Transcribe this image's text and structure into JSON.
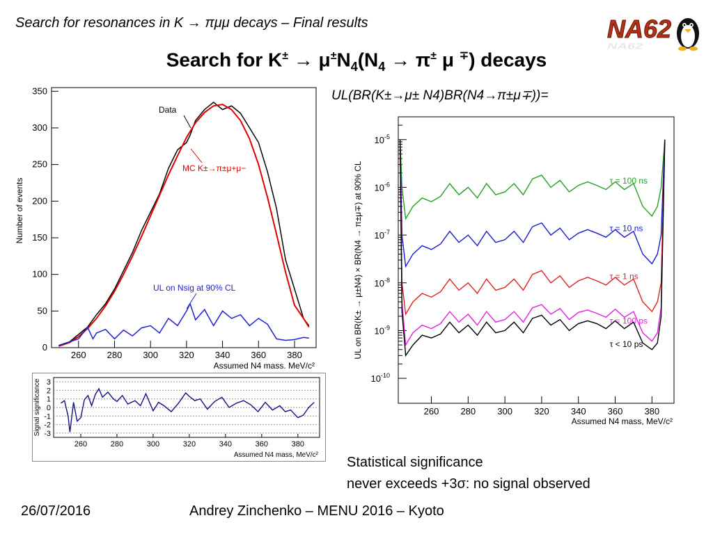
{
  "slide": {
    "subtitle": "Search for resonances in K → πμμ decays – Final results",
    "title": "Search for K± → μ±N4(N4 → π± μ ∓) decays",
    "ul_formula": "UL(BR(K±→μ± N4)BR(N4→π±μ∓))=",
    "logo_text": "NA62",
    "note_lines": [
      "Statistical significance",
      "never exceeds +3σ: no signal observed"
    ],
    "date": "26/07/2016",
    "footer": "Andrey Zinchenko – MENU 2016 – Kyoto"
  },
  "colors": {
    "data": "#000000",
    "mc": "#e00000",
    "ul": "#2020d0",
    "signif": "#101080",
    "tau100ns": "#22a022",
    "tau10ns": "#1a1ad0",
    "tau1ns": "#e02020",
    "tau100ps": "#e020e0",
    "tau10ps": "#000000"
  },
  "chart_data": [
    {
      "type": "line",
      "id": "events",
      "xlabel": "Assumed N4 mass, MeV/c²",
      "ylabel": "Number of events",
      "xlim": [
        245,
        392
      ],
      "ylim": [
        0,
        355
      ],
      "xticks": [
        260,
        280,
        300,
        320,
        340,
        360,
        380
      ],
      "yticks": [
        0,
        50,
        100,
        150,
        200,
        250,
        300,
        350
      ],
      "annotations": [
        "Data",
        "MC K±→π±μ+μ−",
        "UL on Nsig at 90% CL"
      ],
      "series": [
        {
          "name": "Data",
          "x": [
            249,
            255,
            260,
            265,
            270,
            275,
            280,
            285,
            290,
            295,
            300,
            305,
            310,
            315,
            320,
            322,
            325,
            330,
            335,
            340,
            345,
            350,
            355,
            360,
            365,
            370,
            375,
            380,
            385,
            388
          ],
          "y": [
            3,
            8,
            18,
            28,
            45,
            60,
            80,
            105,
            130,
            160,
            185,
            210,
            245,
            270,
            280,
            290,
            310,
            325,
            335,
            325,
            330,
            320,
            300,
            280,
            240,
            190,
            120,
            80,
            40,
            30
          ]
        },
        {
          "name": "MC K±→π±μ+μ−",
          "x": [
            249,
            255,
            260,
            265,
            270,
            275,
            280,
            285,
            290,
            295,
            300,
            305,
            310,
            315,
            320,
            325,
            330,
            335,
            340,
            345,
            350,
            355,
            360,
            365,
            370,
            375,
            380,
            385,
            388
          ],
          "y": [
            2,
            7,
            15,
            26,
            40,
            57,
            77,
            100,
            125,
            152,
            180,
            208,
            236,
            262,
            287,
            307,
            321,
            330,
            332,
            325,
            310,
            285,
            250,
            205,
            155,
            103,
            58,
            40,
            28
          ]
        },
        {
          "name": "UL on Nsig at 90% CL",
          "x": [
            249,
            252,
            255,
            260,
            265,
            268,
            270,
            275,
            280,
            285,
            290,
            295,
            300,
            305,
            310,
            315,
            320,
            322,
            325,
            330,
            335,
            340,
            345,
            350,
            355,
            360,
            365,
            370,
            375,
            380,
            385,
            388
          ],
          "y": [
            3,
            5,
            8,
            12,
            28,
            12,
            20,
            25,
            12,
            24,
            16,
            27,
            30,
            20,
            40,
            30,
            50,
            60,
            38,
            52,
            30,
            50,
            40,
            45,
            30,
            40,
            32,
            12,
            10,
            11,
            14,
            13
          ]
        }
      ]
    },
    {
      "type": "line",
      "id": "significance",
      "xlabel": "Assumed N4 mass, MeV/c²",
      "ylabel": "Signal significance",
      "xlim": [
        245,
        392
      ],
      "ylim": [
        -3.5,
        3.5
      ],
      "xticks": [
        260,
        280,
        300,
        320,
        340,
        360,
        380
      ],
      "yticks": [
        -3,
        -2,
        -1,
        0,
        1,
        2,
        3
      ],
      "series": [
        {
          "name": "",
          "x": [
            249,
            251,
            253,
            254,
            256,
            258,
            260,
            262,
            264,
            266,
            268,
            270,
            272,
            275,
            278,
            280,
            283,
            286,
            290,
            293,
            296,
            300,
            303,
            306,
            310,
            314,
            318,
            320,
            323,
            326,
            330,
            334,
            338,
            342,
            346,
            350,
            354,
            358,
            362,
            366,
            370,
            373,
            376,
            380,
            383,
            386,
            389
          ],
          "y": [
            0.5,
            0.8,
            -1.0,
            -2.9,
            0.6,
            -1.6,
            -1.2,
            0.9,
            1.4,
            0.2,
            1.5,
            2.2,
            1.2,
            1.8,
            1.0,
            0.7,
            1.4,
            0.4,
            0.8,
            0.2,
            1.6,
            -0.4,
            0.6,
            0.2,
            -0.5,
            0.5,
            1.7,
            1.3,
            0.8,
            1.0,
            -0.2,
            0.7,
            1.2,
            0.0,
            0.5,
            0.8,
            0.3,
            -0.5,
            0.6,
            -0.3,
            0.2,
            -0.5,
            -0.3,
            -1.2,
            -0.9,
            0.0,
            0.6
          ]
        }
      ]
    },
    {
      "type": "line",
      "id": "upper-limits",
      "xlabel": "Assumed N4 mass, MeV/c²",
      "ylabel": "UL on BR(K± → μ±N4) × BR(N4 → π±μ∓) at 90% CL",
      "xlim": [
        242,
        392
      ],
      "ylog": true,
      "ylim": [
        3e-11,
        3e-05
      ],
      "xticks": [
        260,
        280,
        300,
        320,
        340,
        360,
        380
      ],
      "yticks": [
        "10-10",
        "10-9",
        "10-8",
        "10-7",
        "10-6",
        "10-5"
      ],
      "series": [
        {
          "name": "τ = 100 ns",
          "x": [
            243,
            244,
            246,
            250,
            255,
            260,
            265,
            270,
            275,
            280,
            285,
            290,
            295,
            300,
            305,
            310,
            315,
            320,
            325,
            330,
            335,
            340,
            345,
            350,
            355,
            360,
            365,
            370,
            375,
            380,
            383,
            385,
            387
          ],
          "y": [
            1e-05,
            1e-06,
            2.2e-07,
            4e-07,
            6e-07,
            5e-07,
            6.5e-07,
            1.2e-06,
            7e-07,
            1e-06,
            6e-07,
            1.2e-06,
            7e-07,
            8e-07,
            1.2e-06,
            7e-07,
            1.5e-06,
            1.8e-06,
            1e-06,
            1.4e-06,
            8e-07,
            1.1e-06,
            1.3e-06,
            1.1e-06,
            9e-07,
            1.3e-06,
            9e-07,
            1.2e-06,
            4e-07,
            2.5e-07,
            4e-07,
            1e-06,
            1e-05
          ]
        },
        {
          "name": "τ = 10 ns",
          "x": [
            243,
            244,
            246,
            250,
            255,
            260,
            265,
            270,
            275,
            280,
            285,
            290,
            295,
            300,
            305,
            310,
            315,
            320,
            325,
            330,
            335,
            340,
            345,
            350,
            355,
            360,
            365,
            370,
            375,
            380,
            383,
            385,
            387
          ],
          "y": [
            1e-05,
            1e-07,
            2.2e-08,
            4e-08,
            6e-08,
            5e-08,
            6.5e-08,
            1.2e-07,
            7e-08,
            1e-07,
            6e-08,
            1.2e-07,
            7e-08,
            8e-08,
            1.2e-07,
            7e-08,
            1.5e-07,
            1.8e-07,
            1e-07,
            1.4e-07,
            8e-08,
            1.1e-07,
            1.3e-07,
            1.1e-07,
            9e-08,
            1.3e-07,
            9e-08,
            1.2e-07,
            4e-08,
            2.5e-08,
            4e-08,
            1e-07,
            1e-05
          ]
        },
        {
          "name": "τ = 1 ns",
          "x": [
            243,
            244,
            246,
            250,
            255,
            260,
            265,
            270,
            275,
            280,
            285,
            290,
            295,
            300,
            305,
            310,
            315,
            320,
            325,
            330,
            335,
            340,
            345,
            350,
            355,
            360,
            365,
            370,
            375,
            380,
            383,
            385,
            387
          ],
          "y": [
            1e-05,
            1e-08,
            2.2e-09,
            4e-09,
            6e-09,
            5e-09,
            6.5e-09,
            1.2e-08,
            7e-09,
            1e-08,
            6e-09,
            1.2e-08,
            7e-09,
            8e-09,
            1.2e-08,
            7e-09,
            1.5e-08,
            1.8e-08,
            1e-08,
            1.4e-08,
            8e-09,
            1.1e-08,
            1.3e-08,
            1.1e-08,
            9e-09,
            1.3e-08,
            9e-09,
            1.2e-08,
            4e-09,
            2.5e-09,
            4e-09,
            1e-08,
            1e-05
          ]
        },
        {
          "name": "τ = 100 ps",
          "x": [
            243,
            244,
            246,
            250,
            255,
            260,
            265,
            270,
            275,
            280,
            285,
            290,
            295,
            300,
            305,
            310,
            315,
            320,
            325,
            330,
            335,
            340,
            345,
            350,
            355,
            360,
            365,
            370,
            375,
            380,
            383,
            385,
            387
          ],
          "y": [
            1e-05,
            4e-09,
            5e-10,
            9e-10,
            1.3e-09,
            1.1e-09,
            1.4e-09,
            2.5e-09,
            1.5e-09,
            2.2e-09,
            1.3e-09,
            2.5e-09,
            1.5e-09,
            1.7e-09,
            2.5e-09,
            1.5e-09,
            3e-09,
            3.5e-09,
            2.2e-09,
            2.9e-09,
            1.7e-09,
            2.4e-09,
            2.7e-09,
            2.3e-09,
            1.9e-09,
            2.8e-09,
            1.9e-09,
            2.5e-09,
            9e-10,
            6e-10,
            9e-10,
            3e-09,
            1e-05
          ]
        },
        {
          "name": "τ < 10 ps",
          "x": [
            243,
            244,
            246,
            250,
            255,
            260,
            265,
            270,
            275,
            280,
            285,
            290,
            295,
            300,
            305,
            310,
            315,
            320,
            325,
            330,
            335,
            340,
            345,
            350,
            355,
            360,
            365,
            370,
            375,
            380,
            383,
            385,
            387
          ],
          "y": [
            1e-05,
            2.5e-09,
            3e-10,
            5e-10,
            8e-10,
            7e-10,
            8.5e-10,
            1.5e-09,
            9e-10,
            1.3e-09,
            8e-10,
            1.5e-09,
            9e-10,
            1e-09,
            1.5e-09,
            9e-10,
            1.8e-09,
            2.1e-09,
            1.3e-09,
            1.7e-09,
            1e-09,
            1.4e-09,
            1.6e-09,
            1.4e-09,
            1.1e-09,
            1.6e-09,
            1.1e-09,
            1.5e-09,
            5.5e-10,
            4e-10,
            5.5e-10,
            2e-09,
            1e-05
          ]
        }
      ]
    }
  ]
}
